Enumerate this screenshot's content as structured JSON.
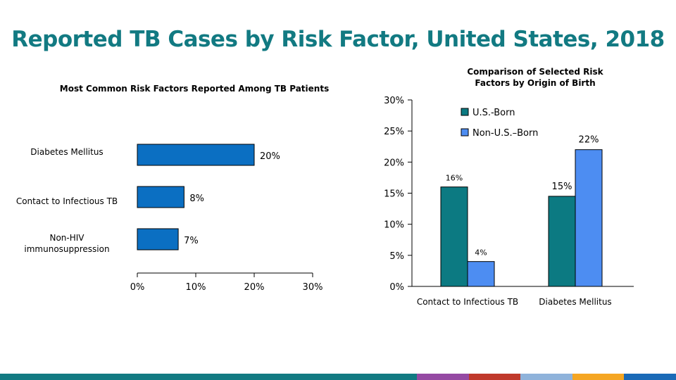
{
  "page": {
    "title": "Reported TB Cases by Risk Factor, United States, 2018"
  },
  "chart_data": [
    {
      "type": "bar",
      "orientation": "horizontal",
      "title": "Most Common Risk Factors Reported Among TB Patients",
      "categories": [
        [
          "Diabetes Mellitus"
        ],
        [
          "Contact to Infectious TB"
        ],
        [
          "Non-HIV",
          "immunosuppression"
        ]
      ],
      "values": [
        20,
        8,
        7
      ],
      "value_labels": [
        "20%",
        "8%",
        "7%"
      ],
      "xlim": [
        0,
        30
      ],
      "xticks": [
        0,
        10,
        20,
        30
      ],
      "xtick_labels": [
        "0%",
        "10%",
        "20%",
        "30%"
      ],
      "grid": false,
      "colors": [
        "#0b6fc2"
      ]
    },
    {
      "type": "bar",
      "orientation": "vertical",
      "title": [
        "Comparison of Selected Risk",
        "Factors by Origin of Birth"
      ],
      "categories": [
        "Contact to Infectious TB",
        "Diabetes Mellitus"
      ],
      "series": [
        {
          "name": "U.S.-Born",
          "values": [
            16,
            14.5
          ],
          "value_labels": [
            "16%",
            "15%"
          ],
          "color": "#0c7a82"
        },
        {
          "name": "Non-U.S.–Born",
          "values": [
            4,
            22
          ],
          "value_labels": [
            "4%",
            "22%"
          ],
          "color": "#4d8df2"
        }
      ],
      "ylim": [
        0,
        30
      ],
      "yticks": [
        0,
        5,
        10,
        15,
        20,
        25,
        30
      ],
      "ytick_labels": [
        "0%",
        "5%",
        "10%",
        "15%",
        "20%",
        "25%",
        "30%"
      ],
      "legend": "top-left",
      "grid": false
    }
  ],
  "footer": {
    "stripe_colors": [
      "#127a82",
      "#954aa3",
      "#c0392b",
      "#8fb3db",
      "#f5a623",
      "#1a6ab7"
    ]
  }
}
